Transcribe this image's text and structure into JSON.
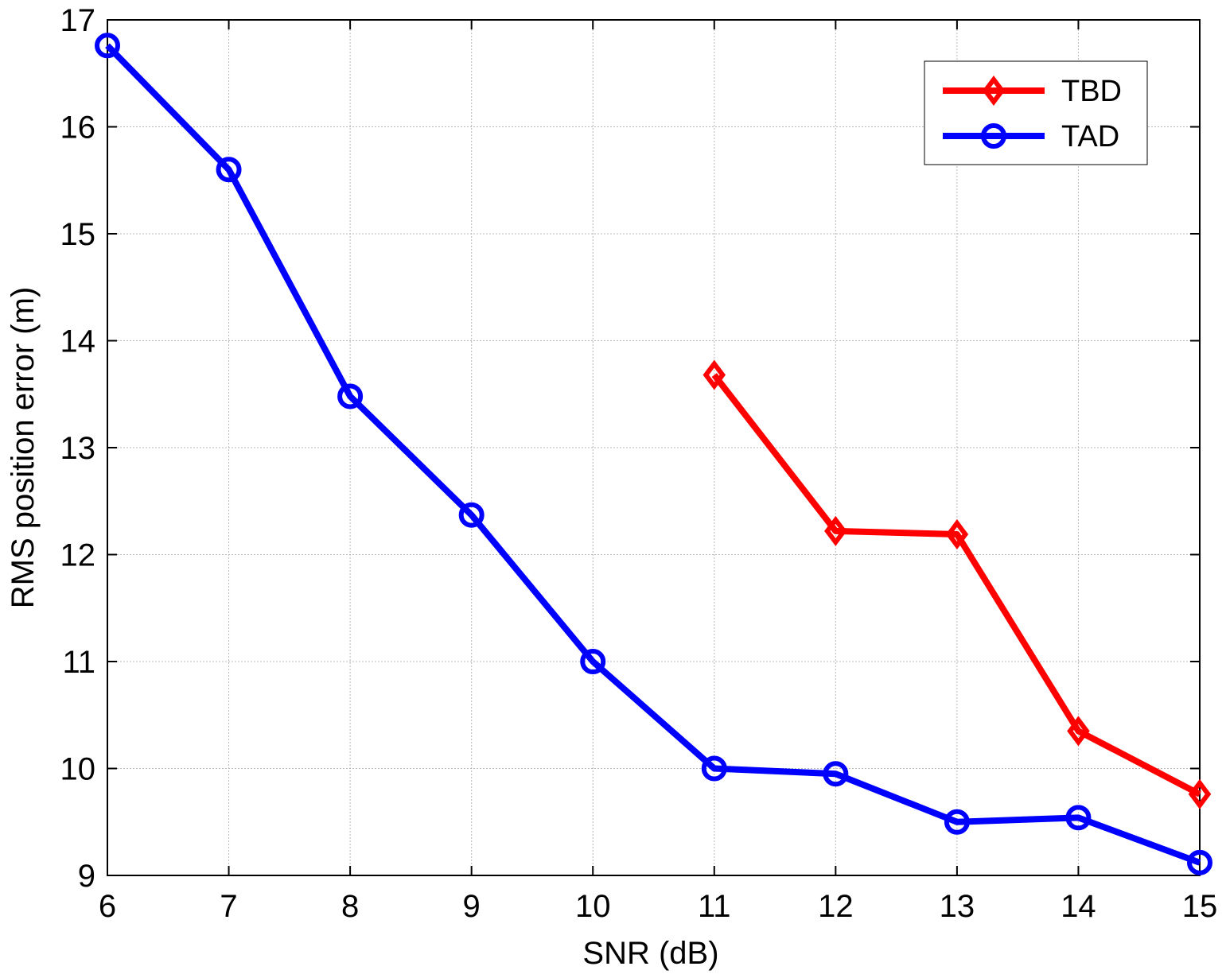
{
  "chart_data": {
    "type": "line",
    "title": "",
    "xlabel": "SNR (dB)",
    "ylabel": "RMS position error (m)",
    "xlim": [
      6,
      15
    ],
    "ylim": [
      9,
      17
    ],
    "xticks": [
      6,
      7,
      8,
      9,
      10,
      11,
      12,
      13,
      14,
      15
    ],
    "yticks": [
      9,
      10,
      11,
      12,
      13,
      14,
      15,
      16,
      17
    ],
    "grid": true,
    "legend_position": "top-right",
    "series": [
      {
        "name": "TBD",
        "color": "#ff0000",
        "marker": "diamond",
        "x": [
          11,
          12,
          13,
          14,
          15
        ],
        "y": [
          13.68,
          12.22,
          12.19,
          10.35,
          9.76
        ]
      },
      {
        "name": "TAD",
        "color": "#0000ff",
        "marker": "circle",
        "x": [
          6,
          7,
          8,
          9,
          10,
          11,
          12,
          13,
          14,
          15
        ],
        "y": [
          16.76,
          15.6,
          13.48,
          12.37,
          11.0,
          10.0,
          9.95,
          9.5,
          9.54,
          9.12
        ]
      }
    ]
  }
}
